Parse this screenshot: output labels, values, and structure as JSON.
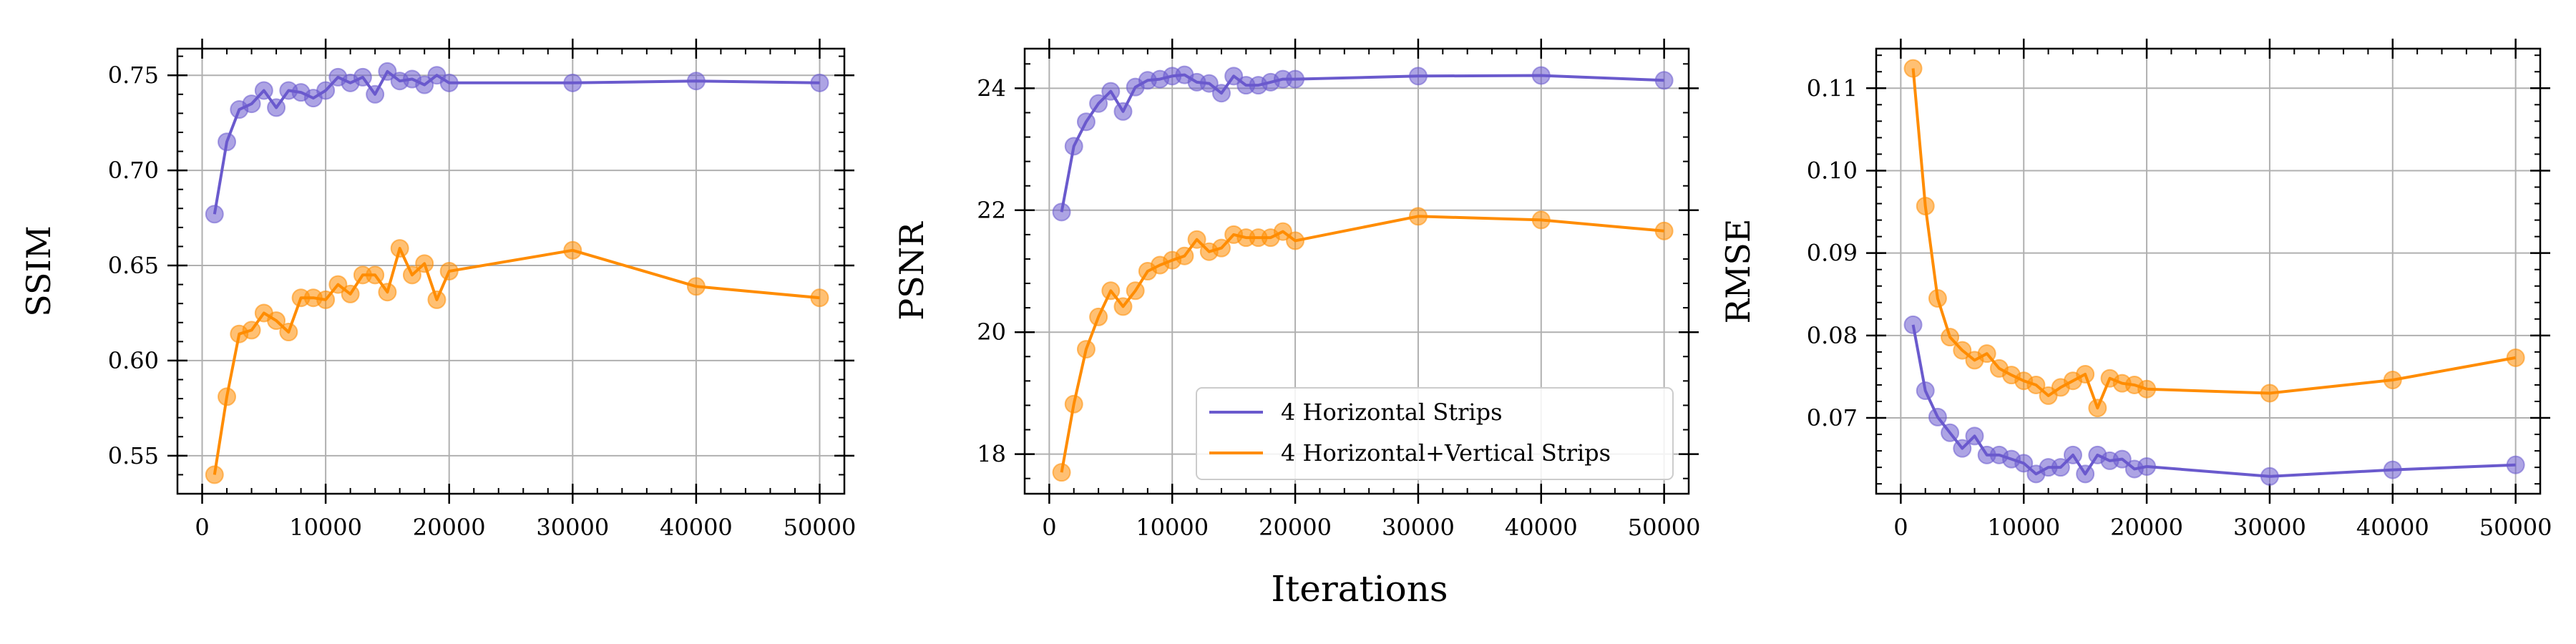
{
  "figure": {
    "shared_xlabel": "Iterations",
    "colors": {
      "purple": "#6a5acd",
      "orange": "#ff8c00",
      "grid": "#b0b0b0"
    }
  },
  "legend": {
    "entries": [
      "4 Horizontal Strips",
      "4 Horizontal+Vertical Strips"
    ]
  },
  "chart_data": [
    {
      "type": "line",
      "title": "",
      "xlabel": "",
      "ylabel": "SSIM",
      "xlim": [
        -2000,
        52000
      ],
      "ylim": [
        0.53,
        0.764
      ],
      "xticks": [
        0,
        10000,
        20000,
        30000,
        40000,
        50000
      ],
      "xtick_labels": [
        "0",
        "10000",
        "20000",
        "30000",
        "40000",
        "50000"
      ],
      "yticks": [
        0.55,
        0.6,
        0.65,
        0.7,
        0.75
      ],
      "ytick_labels": [
        "0.55",
        "0.60",
        "0.65",
        "0.70",
        "0.75"
      ],
      "grid": true,
      "x": [
        1000,
        2000,
        3000,
        4000,
        5000,
        6000,
        7000,
        8000,
        9000,
        10000,
        11000,
        12000,
        13000,
        14000,
        15000,
        16000,
        17000,
        18000,
        19000,
        20000,
        30000,
        40000,
        50000
      ],
      "series": [
        {
          "name": "4 Horizontal Strips",
          "color": "#6a5acd",
          "values": [
            0.677,
            0.715,
            0.732,
            0.735,
            0.742,
            0.733,
            0.742,
            0.741,
            0.738,
            0.742,
            0.749,
            0.746,
            0.749,
            0.74,
            0.752,
            0.747,
            0.748,
            0.745,
            0.75,
            0.746,
            0.746,
            0.747,
            0.746
          ]
        },
        {
          "name": "4 Horizontal+Vertical Strips",
          "color": "#ff8c00",
          "values": [
            0.54,
            0.581,
            0.614,
            0.616,
            0.625,
            0.621,
            0.615,
            0.633,
            0.633,
            0.632,
            0.64,
            0.635,
            0.645,
            0.645,
            0.636,
            0.659,
            0.645,
            0.651,
            0.632,
            0.647,
            0.658,
            0.639,
            0.633
          ]
        }
      ]
    },
    {
      "type": "line",
      "title": "",
      "xlabel": "",
      "ylabel": "PSNR",
      "xlim": [
        -2000,
        52000
      ],
      "ylim": [
        17.35,
        24.65
      ],
      "xticks": [
        0,
        10000,
        20000,
        30000,
        40000,
        50000
      ],
      "xtick_labels": [
        "0",
        "10000",
        "20000",
        "30000",
        "40000",
        "50000"
      ],
      "yticks": [
        18,
        20,
        22,
        24
      ],
      "ytick_labels": [
        "18",
        "20",
        "22",
        "24"
      ],
      "grid": true,
      "legend_position": "lower-right",
      "x": [
        1000,
        2000,
        3000,
        4000,
        5000,
        6000,
        7000,
        8000,
        9000,
        10000,
        11000,
        12000,
        13000,
        14000,
        15000,
        16000,
        17000,
        18000,
        19000,
        20000,
        30000,
        40000,
        50000
      ],
      "series": [
        {
          "name": "4 Horizontal Strips",
          "color": "#6a5acd",
          "values": [
            21.97,
            23.05,
            23.45,
            23.75,
            23.95,
            23.62,
            24.02,
            24.13,
            24.15,
            24.2,
            24.22,
            24.1,
            24.08,
            23.92,
            24.2,
            24.05,
            24.05,
            24.1,
            24.15,
            24.15,
            24.2,
            24.21,
            24.13
          ]
        },
        {
          "name": "4 Horizontal+Vertical Strips",
          "color": "#ff8c00",
          "values": [
            17.7,
            18.82,
            19.72,
            20.25,
            20.68,
            20.42,
            20.68,
            21.0,
            21.1,
            21.18,
            21.25,
            21.52,
            21.32,
            21.38,
            21.6,
            21.55,
            21.55,
            21.55,
            21.65,
            21.5,
            21.9,
            21.84,
            21.66
          ]
        }
      ]
    },
    {
      "type": "line",
      "title": "",
      "xlabel": "",
      "ylabel": "RMSE",
      "xlim": [
        -2000,
        52000
      ],
      "ylim": [
        0.0608,
        0.1148
      ],
      "xticks": [
        0,
        10000,
        20000,
        30000,
        40000,
        50000
      ],
      "xtick_labels": [
        "0",
        "10000",
        "20000",
        "30000",
        "40000",
        "50000"
      ],
      "yticks": [
        0.07,
        0.08,
        0.09,
        0.1,
        0.11
      ],
      "ytick_labels": [
        "0.07",
        "0.08",
        "0.09",
        "0.10",
        "0.11"
      ],
      "grid": true,
      "x": [
        1000,
        2000,
        3000,
        4000,
        5000,
        6000,
        7000,
        8000,
        9000,
        10000,
        11000,
        12000,
        13000,
        14000,
        15000,
        16000,
        17000,
        18000,
        19000,
        20000,
        30000,
        40000,
        50000
      ],
      "series": [
        {
          "name": "4 Horizontal Strips",
          "color": "#6a5acd",
          "values": [
            0.0813,
            0.0733,
            0.0701,
            0.0682,
            0.0663,
            0.0678,
            0.0655,
            0.0655,
            0.065,
            0.0645,
            0.0632,
            0.064,
            0.064,
            0.0655,
            0.0632,
            0.0655,
            0.0648,
            0.065,
            0.0638,
            0.0641,
            0.0629,
            0.0637,
            0.0643
          ]
        },
        {
          "name": "4 Horizontal+Vertical Strips",
          "color": "#ff8c00",
          "values": [
            0.1124,
            0.0957,
            0.0845,
            0.0798,
            0.0782,
            0.077,
            0.0778,
            0.076,
            0.0752,
            0.0745,
            0.074,
            0.0727,
            0.0737,
            0.0745,
            0.0753,
            0.0712,
            0.0748,
            0.0742,
            0.074,
            0.0735,
            0.073,
            0.0746,
            0.0773
          ]
        }
      ]
    }
  ]
}
